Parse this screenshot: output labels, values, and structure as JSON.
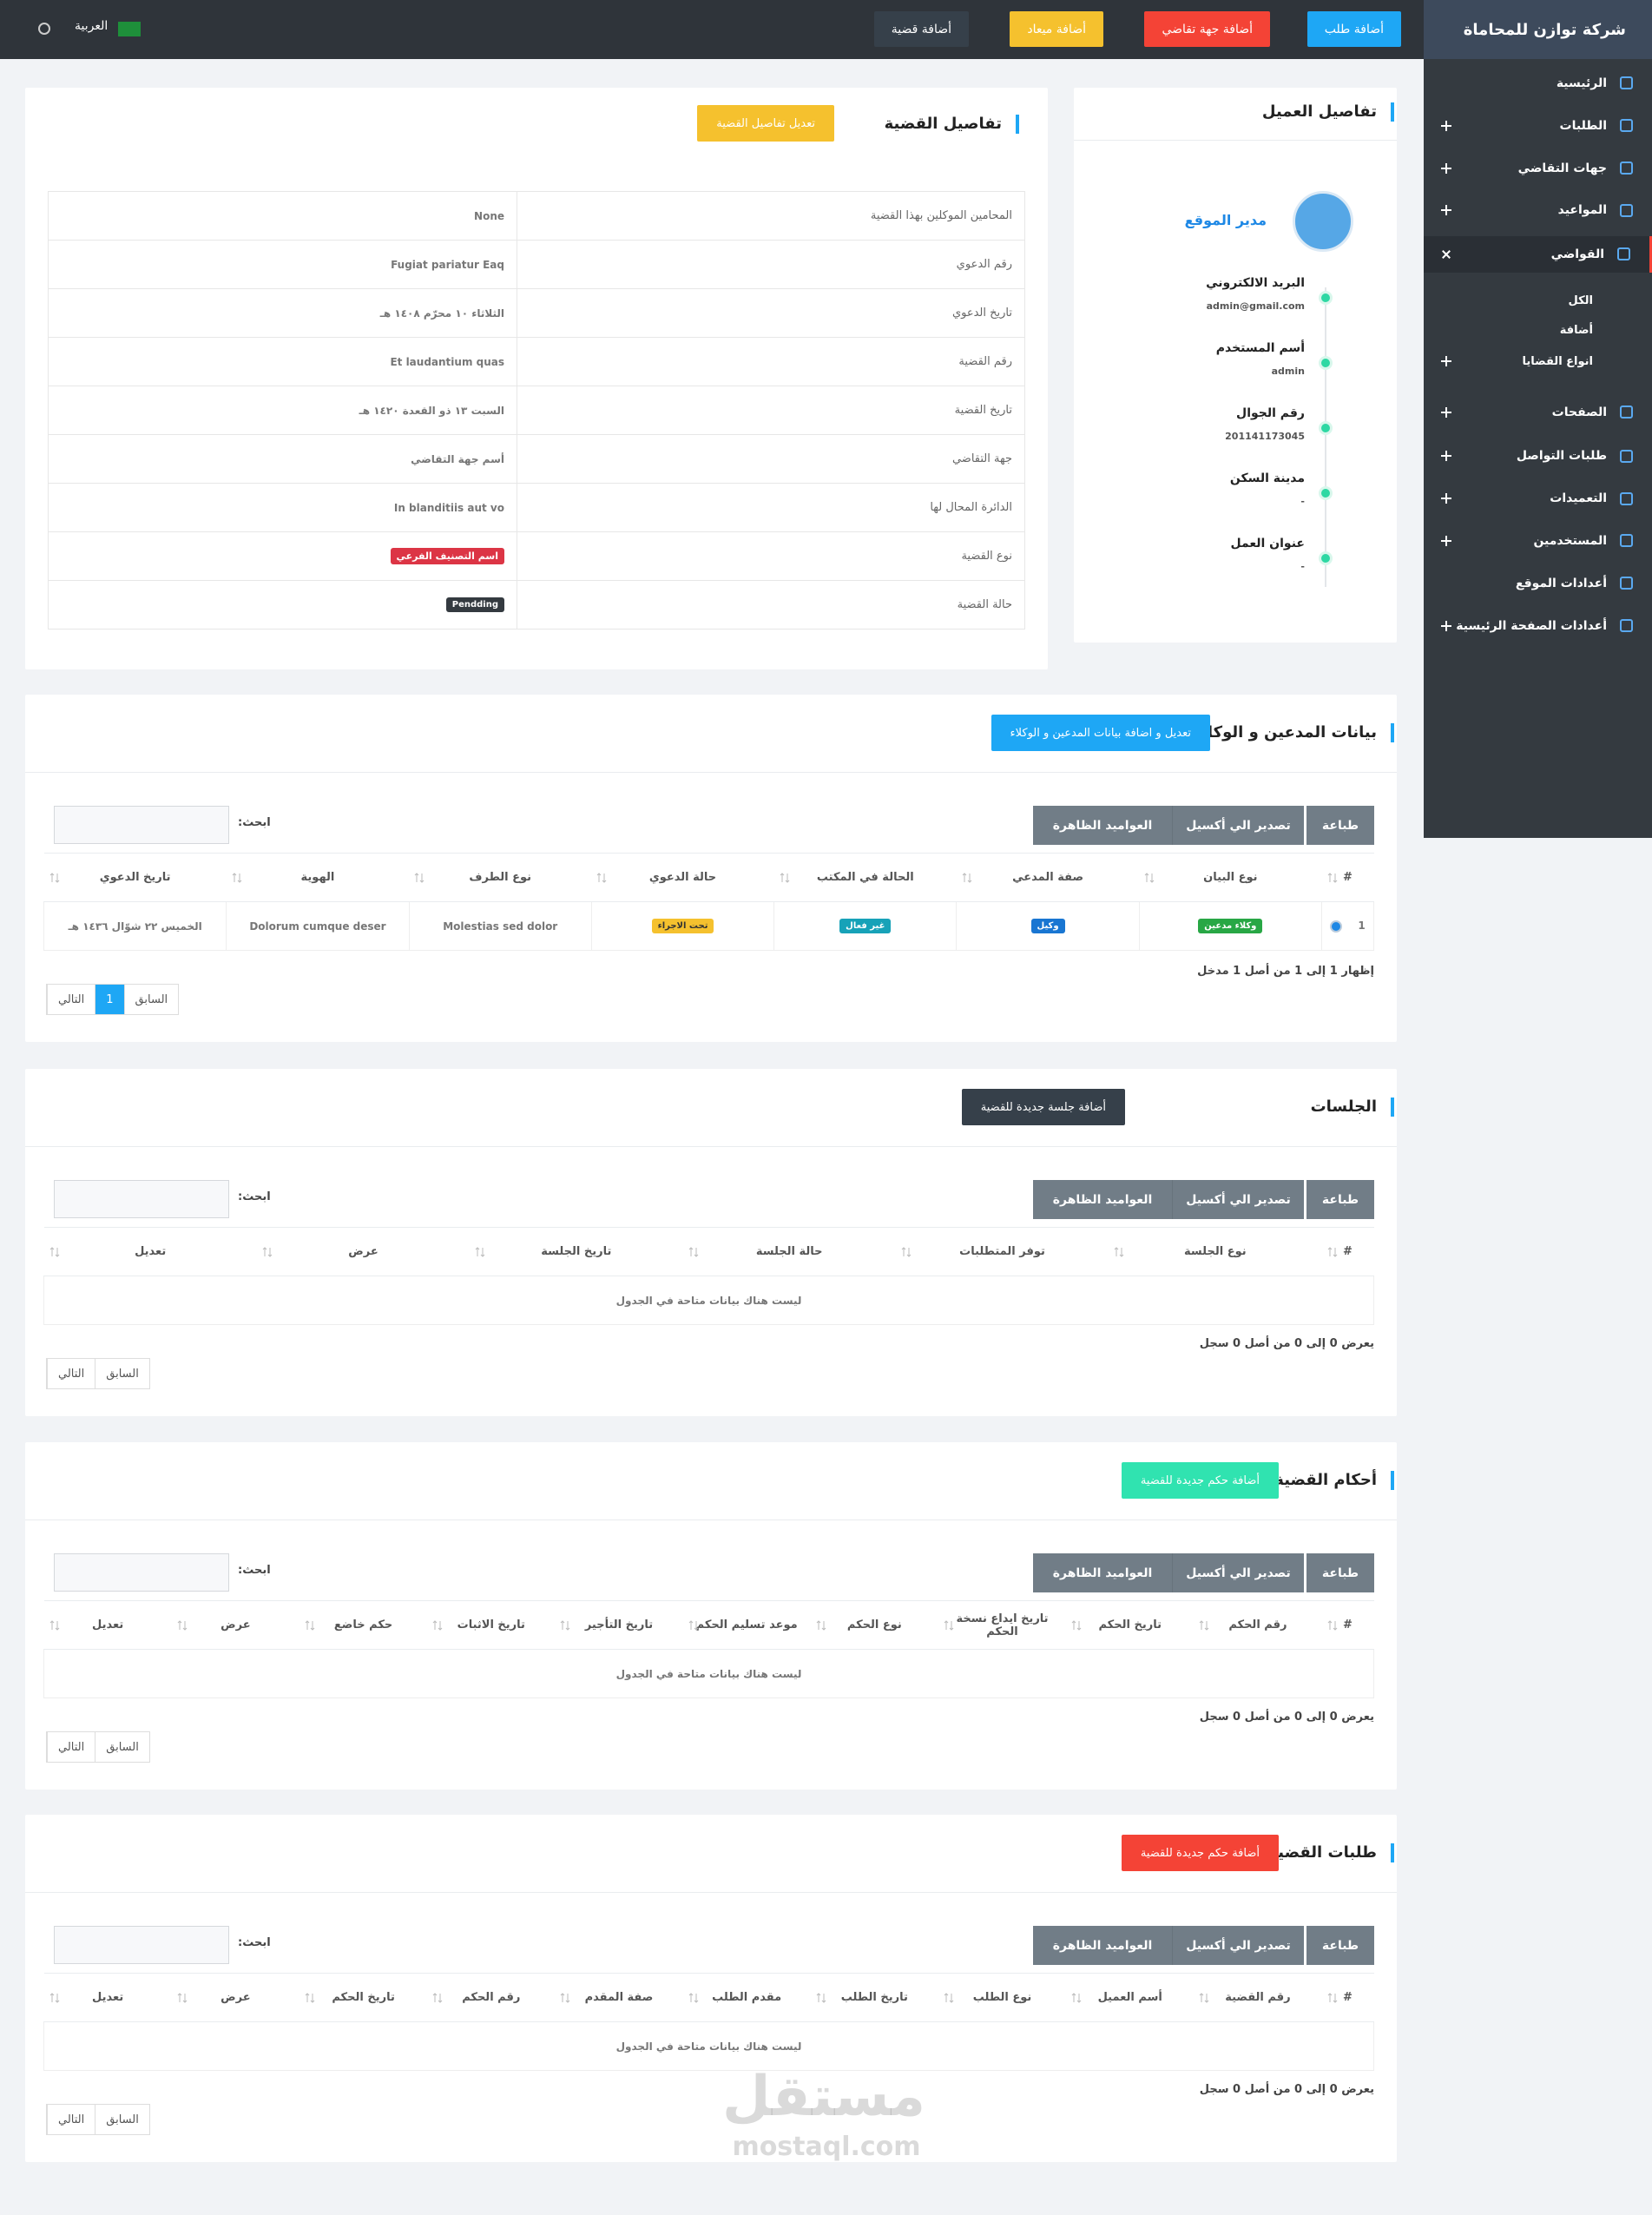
{
  "topbar": {
    "brand": "شركة توازن للمحاماة",
    "buttons": [
      "أضافة طلب",
      "أضافة جهة تقاضي",
      "أضافة ميعاد",
      "أضافة قضية"
    ],
    "language": "العربية"
  },
  "sidebar": {
    "menu": [
      {
        "label": "الرئيسية"
      },
      {
        "label": "الطلبات"
      },
      {
        "label": "جهات التقاضي"
      },
      {
        "label": "المواعيد"
      },
      {
        "label": "القواضي"
      },
      {
        "label": "الكل"
      },
      {
        "label": "أضافة"
      },
      {
        "label": "انواع القضايا"
      },
      {
        "label": "الصفحات"
      },
      {
        "label": "طلبات التواصل"
      },
      {
        "label": "التعميدات"
      },
      {
        "label": "المستخدمين"
      },
      {
        "label": "أعدادات الموقع"
      },
      {
        "label": "أعدادات الصفحة الرئيسية"
      }
    ]
  },
  "case_details": {
    "title": "تفاصيل القضية",
    "edit_button": "تعديل تفاصيل القضية",
    "rows": [
      {
        "label": "المحامين الموكلين بهذا القضية",
        "value": "None"
      },
      {
        "label": "رقم الدعوي",
        "value": "Fugiat pariatur Eaq"
      },
      {
        "label": "تاريخ الدعوي",
        "value": "الثلاثاء ١٠ محرّم ١٤٠٨ هـ"
      },
      {
        "label": "رقم القضية",
        "value": "Et laudantium quas"
      },
      {
        "label": "تاريخ القضية",
        "value": "السبت ١٣ ذو القعدة ١٤٢٠ هـ"
      },
      {
        "label": "جهة التقاضي",
        "value": "أسم جهة التقاضي"
      },
      {
        "label": "الدائرة المحال لها",
        "value": "In blanditiis aut vo"
      },
      {
        "label": "نوع القضية",
        "value": "اسم التصنيف الفرعي"
      },
      {
        "label": "حالة القضية",
        "value": "Pendding"
      }
    ]
  },
  "client": {
    "title": "تفاصيل العميل",
    "name": "مدير الموقع",
    "fields": [
      {
        "label": "البريد الالكتروني",
        "value": "admin@gmail.com"
      },
      {
        "label": "أسم المستخدم",
        "value": "admin"
      },
      {
        "label": "رقم الجوال",
        "value": "201141173045"
      },
      {
        "label": "مدينة السكن",
        "value": "-"
      },
      {
        "label": "عنوان العمل",
        "value": "-"
      }
    ]
  },
  "sections": [
    {
      "title": "بيانات المدعين و الوكلاء",
      "button": "تعديل و اضافة بيانات المدعين و الوكلاء",
      "print": "طباعة",
      "excel": "تصدير الي أكسيل",
      "columns": "العواميد الظاهرة",
      "search_label": "ابحث:",
      "headers": [
        "#",
        "نوع البيان",
        "صفة المدعي",
        "الحالة في المكتب",
        "حالة الدعوي",
        "نوع الطرف",
        "الهوية",
        "تاريخ الدعوي"
      ],
      "rows": [
        [
          "1",
          "وكلاء مدعين",
          "وكيل",
          "غير فعال",
          "تحت الاجراء",
          "Molestias sed dolor",
          "Dolorum cumque deser",
          "الخميس ٢٢ شوّال ١٤٣٦ هـ"
        ]
      ],
      "info": "إظهار 1 إلى 1 من أصل 1 مدخل",
      "pagination": [
        "السابق",
        "1",
        "التالي"
      ]
    },
    {
      "title": "الجلسات",
      "button": "أضافة جلسة جديدة للقضية",
      "print": "طباعة",
      "excel": "تصدير الي أكسيل",
      "columns": "العواميد الظاهرة",
      "search_label": "ابحث:",
      "headers": [
        "#",
        "نوع الجلسة",
        "توفر المتطلبات",
        "حالة الجلسة",
        "تاريخ الجلسة",
        "عرض",
        "تعديل"
      ],
      "empty": "ليست هناك بيانات متاحة في الجدول",
      "info": "يعرض 0 إلى 0 من أصل 0 سجل",
      "pagination": [
        "السابق",
        "التالي"
      ]
    },
    {
      "title": "أحكام القضية",
      "button": "أضافة حكم جديدة للقضية",
      "print": "طباعة",
      "excel": "تصدير الي أكسيل",
      "columns": "العواميد الظاهرة",
      "search_label": "ابحث:",
      "headers": [
        "#",
        "رقم الحكم",
        "تاريخ الحكم",
        "تاريخ ايداع نسخة الحكم",
        "نوع الحكم",
        "موعد تسليم الحكم",
        "تاريخ التأجير",
        "تاريخ الاثبات",
        "حكم خاضع",
        "عرض",
        "تعديل"
      ],
      "empty": "ليست هناك بيانات متاحة في الجدول",
      "info": "يعرض 0 إلى 0 من أصل 0 سجل",
      "pagination": [
        "السابق",
        "التالي"
      ]
    },
    {
      "title": "طلبات القضية",
      "button": "أضافة حكم جديدة للقضية",
      "print": "طباعة",
      "excel": "تصدير الي أكسيل",
      "columns": "العواميد الظاهرة",
      "search_label": "ابحث:",
      "headers": [
        "#",
        "رقم القضية",
        "أسم العميل",
        "نوع الطلب",
        "تاريخ الطلب",
        "مقدم الطلب",
        "صفة المقدم",
        "رقم الحكم",
        "تاريخ الحكم",
        "عرض",
        "تعديل"
      ],
      "empty": "ليست هناك بيانات متاحة في الجدول",
      "info": "يعرض 0 إلى 0 من أصل 0 سجل",
      "pagination": [
        "السابق",
        "التالي"
      ]
    }
  ],
  "watermark": {
    "logo": "مستقل",
    "site": "mostaql.com"
  }
}
